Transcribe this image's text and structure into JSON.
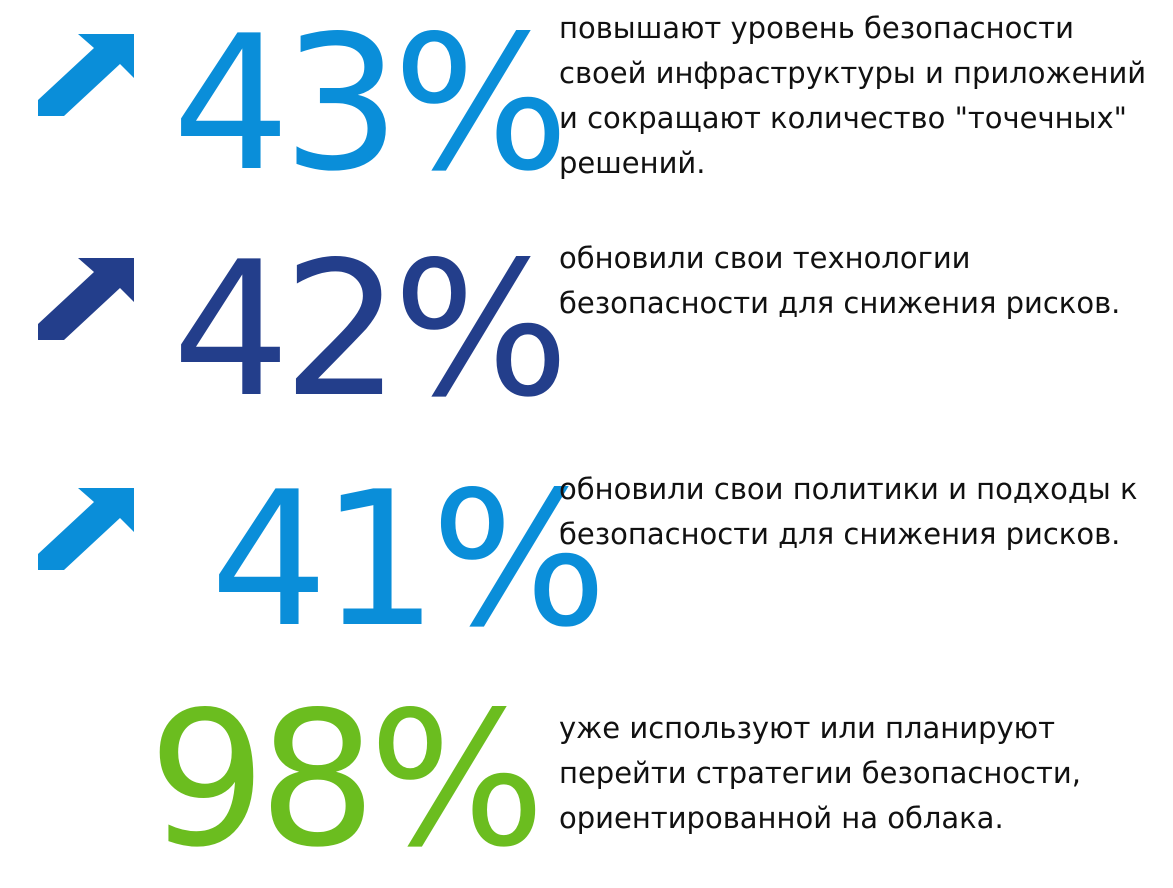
{
  "colors": {
    "light_blue": "#0a8ed9",
    "dark_blue": "#233e8b",
    "green": "#6bbd1f",
    "text": "#111111"
  },
  "stats": [
    {
      "value": "43%",
      "color": "light_blue",
      "icon": "up-right-arrow-icon",
      "lines": [
        "повышают уровень безопасности",
        "своей инфраструктуры и приложений",
        "и сокращают количество \"точечных\"",
        "решений."
      ]
    },
    {
      "value": "42%",
      "color": "dark_blue",
      "icon": "up-right-arrow-icon",
      "lines": [
        "обновили свои технологии",
        "безопасности для снижения рисков."
      ]
    },
    {
      "value": "41%",
      "color": "light_blue",
      "icon": "up-right-arrow-icon",
      "lines": [
        "обновили свои политики и подходы к",
        "безопасности для снижения рисков."
      ]
    },
    {
      "value": "98%",
      "color": "green",
      "icon": "",
      "lines": [
        "уже используют или планируют",
        "перейти стратегии безопасности,",
        "ориентированной на облака."
      ]
    }
  ]
}
